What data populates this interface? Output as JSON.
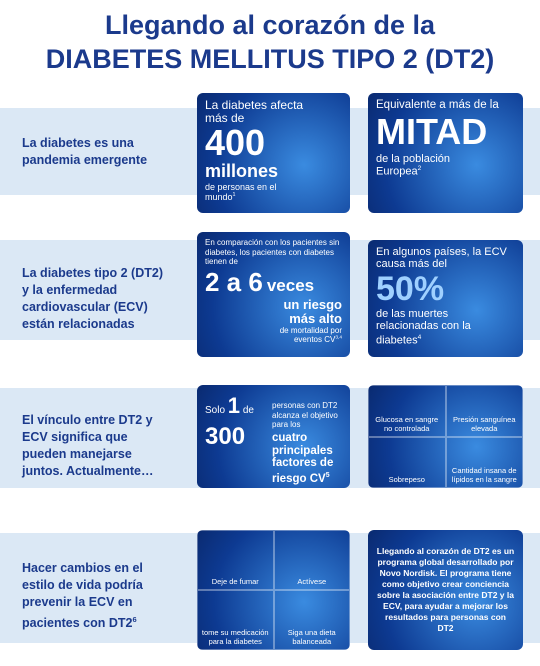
{
  "header": {
    "line1": "Llegando al corazón de la",
    "line2": "DIABETES MELLITUS TIPO 2 (DT2)"
  },
  "rows": [
    {
      "label": "La diabetes es una pandemia emergente",
      "left": {
        "intro": "La diabetes afecta más de",
        "number": "400",
        "unit": "millones",
        "detail": "de personas en el mundo",
        "ref": "1"
      },
      "right": {
        "intro": "Equivalente a más de la",
        "number": "MITAD",
        "detail": "de la población Europea",
        "ref": "2"
      }
    },
    {
      "label": "La diabetes tipo 2 (DT2) y la enfermedad cardiovascular (ECV) están relacionadas",
      "left": {
        "intro": "En comparación con los pacientes sin diabetes, los pacientes con diabetes tienen de",
        "number": "2 a 6",
        "unit": "veces",
        "emphasis": "un riesgo más alto",
        "detail": "de mortalidad por eventos CV",
        "ref": "3,4"
      },
      "right": {
        "intro": "En algunos países, la ECV causa más del",
        "number": "50%",
        "detail": "de las muertes relacionadas con la diabetes",
        "ref": "4"
      }
    },
    {
      "label": "El vínculo entre DT2 y ECV significa que pueden manejarse juntos. Actualmente…",
      "left": {
        "pre": "Solo",
        "one": "1",
        "of": "de",
        "number": "300",
        "intro": "personas con DT2 alcanza el objetivo para los",
        "emphasis": "cuatro principales factores de riesgo CV",
        "ref": "5"
      },
      "right": {
        "items": [
          "Glucosa en sangre no controlada",
          "Presión sanguínea elevada",
          "Sobrepeso",
          "Cantidad insana de lípidos en la sangre"
        ]
      }
    },
    {
      "label": "Hacer cambios en el estilo de vida podría prevenir la ECV en pacientes con DT2",
      "ref": "6",
      "left": {
        "items": [
          "Deje de fumar",
          "Actívese",
          "tome su medicación para la diabetes",
          "Siga una dieta balanceada"
        ]
      },
      "right": {
        "text": "Llegando al corazón de DT2 es un programa global desarrollado por Novo Nordisk. El programa tiene como objetivo crear conciencia sobre la asociación entre DT2 y la ECV, para ayudar a mejorar los resultados para personas con DT2"
      }
    }
  ]
}
